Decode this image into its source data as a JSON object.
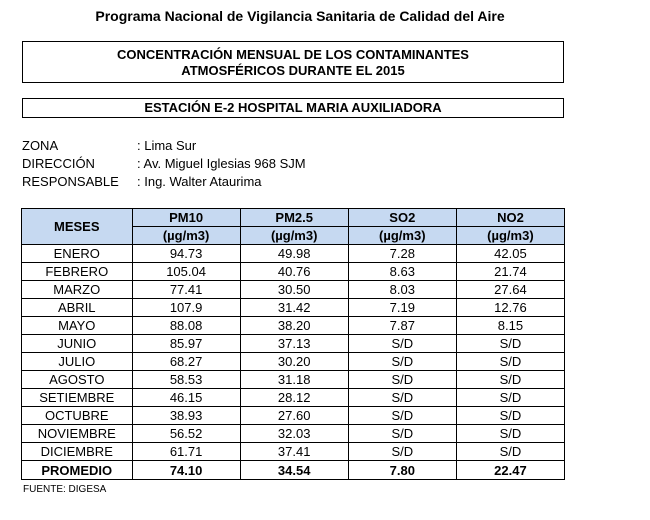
{
  "program_title": "Programa Nacional de Vigilancia Sanitaria de Calidad del Aire",
  "report_title_line1": "CONCENTRACIÓN MENSUAL DE LOS CONTAMINANTES",
  "report_title_line2": "ATMOSFÉRICOS DURANTE EL 2015",
  "station": "ESTACIÓN E-2  HOSPITAL MARIA AUXILIADORA",
  "info": [
    {
      "label": "ZONA",
      "value": ": Lima Sur"
    },
    {
      "label": "DIRECCIÓN",
      "value": ": Av. Miguel Iglesias 968 SJM"
    },
    {
      "label": "RESPONSABLE",
      "value": ": Ing. Walter Ataurima"
    }
  ],
  "table": {
    "header_months": "MESES",
    "columns": [
      {
        "name": "PM10",
        "unit": "(µg/m3)"
      },
      {
        "name": "PM2.5",
        "unit": "(µg/m3)"
      },
      {
        "name": "SO2",
        "unit": "(µg/m3)"
      },
      {
        "name": "NO2",
        "unit": "(µg/m3)"
      }
    ],
    "rows": [
      [
        "ENERO",
        "94.73",
        "49.98",
        "7.28",
        "42.05"
      ],
      [
        "FEBRERO",
        "105.04",
        "40.76",
        "8.63",
        "21.74"
      ],
      [
        "MARZO",
        "77.41",
        "30.50",
        "8.03",
        "27.64"
      ],
      [
        "ABRIL",
        "107.9",
        "31.42",
        "7.19",
        "12.76"
      ],
      [
        "MAYO",
        "88.08",
        "38.20",
        "7.87",
        "8.15"
      ],
      [
        "JUNIO",
        "85.97",
        "37.13",
        "S/D",
        "S/D"
      ],
      [
        "JULIO",
        "68.27",
        "30.20",
        "S/D",
        "S/D"
      ],
      [
        "AGOSTO",
        "58.53",
        "31.18",
        "S/D",
        "S/D"
      ],
      [
        "SETIEMBRE",
        "46.15",
        "28.12",
        "S/D",
        "S/D"
      ],
      [
        "OCTUBRE",
        "38.93",
        "27.60",
        "S/D",
        "S/D"
      ],
      [
        "NOVIEMBRE",
        "56.52",
        "32.03",
        "S/D",
        "S/D"
      ],
      [
        "DICIEMBRE",
        "61.71",
        "37.41",
        "S/D",
        "S/D"
      ]
    ],
    "footer": [
      "PROMEDIO",
      "74.10",
      "34.54",
      "7.80",
      "22.47"
    ]
  },
  "source": "FUENTE: DIGESA",
  "colors": {
    "header_bg": "#c6d9f1"
  }
}
